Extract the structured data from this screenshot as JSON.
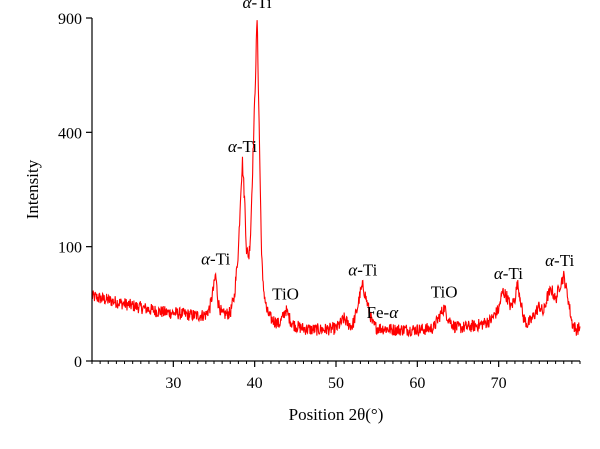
{
  "chart_data": {
    "type": "line",
    "xlabel": "Position 2θ(°)",
    "ylabel": "Intensity",
    "xlim": [
      20,
      80
    ],
    "ylim": [
      0,
      930
    ],
    "x_ticks": [
      30,
      40,
      50,
      60,
      70
    ],
    "x_tick_labels": [
      "30",
      "40",
      "50",
      "60",
      "70"
    ],
    "y_ticks": [
      0,
      100,
      400,
      900
    ],
    "y_tick_labels": [
      "0",
      "100",
      "400",
      "900"
    ],
    "y_tick_positions_data": [
      0,
      310,
      620,
      930
    ],
    "x_minor_step": 1,
    "line_color": "#ff0000",
    "background": "baseline noise",
    "series": [
      {
        "x": [
          20,
          21,
          22,
          23,
          24,
          25,
          26,
          27,
          28,
          29,
          30,
          31,
          32,
          33,
          34,
          34.5,
          35,
          35.2,
          35.5,
          36,
          37,
          37.5,
          38,
          38.3,
          38.5,
          38.8,
          39,
          39.3,
          39.5,
          40,
          40.3,
          40.5,
          40.8,
          41,
          41.5,
          42,
          43,
          43.5,
          43.8,
          44.5,
          45,
          46,
          47,
          48,
          49,
          50,
          50.5,
          51,
          51.5,
          52,
          52.5,
          53,
          53.3,
          53.8,
          54.5,
          55,
          56,
          57,
          58,
          59,
          60,
          61,
          62,
          62.7,
          63.3,
          63.8,
          64.5,
          65,
          66,
          67,
          68,
          69,
          70,
          70.5,
          71,
          71.5,
          72,
          72.3,
          72.6,
          73,
          73.5,
          74,
          75,
          75.5,
          76,
          76.5,
          77,
          77.5,
          78,
          78.5,
          79,
          79.5,
          80
        ],
        "y": [
          175,
          170,
          165,
          160,
          155,
          150,
          145,
          140,
          135,
          132,
          130,
          128,
          125,
          123,
          125,
          145,
          205,
          235,
          160,
          125,
          130,
          175,
          300,
          470,
          540,
          420,
          300,
          285,
          350,
          700,
          930,
          700,
          340,
          210,
          135,
          115,
          100,
          120,
          140,
          105,
          95,
          88,
          85,
          85,
          86,
          88,
          100,
          115,
          100,
          95,
          130,
          185,
          205,
          160,
          100,
          90,
          88,
          85,
          85,
          85,
          85,
          86,
          90,
          120,
          145,
          115,
          95,
          90,
          92,
          95,
          100,
          110,
          140,
          190,
          175,
          145,
          170,
          210,
          180,
          120,
          100,
          110,
          150,
          130,
          175,
          195,
          165,
          205,
          230,
          175,
          105,
          85,
          90
        ]
      }
    ],
    "annotations": [
      {
        "text": "α-Ti",
        "x": 35.2,
        "y": 235
      },
      {
        "text": "α-Ti",
        "x": 38.5,
        "y": 540
      },
      {
        "text": "α-Ti",
        "x": 40.3,
        "y": 930
      },
      {
        "text": "TiO",
        "x": 43.8,
        "y": 140
      },
      {
        "text": "α-Ti",
        "x": 53.3,
        "y": 205
      },
      {
        "text": "Fe-α",
        "x": 55.7,
        "y": 90
      },
      {
        "text": "TiO",
        "x": 63.3,
        "y": 145
      },
      {
        "text": "α-Ti",
        "x": 71.2,
        "y": 195
      },
      {
        "text": "α-Ti",
        "x": 77.5,
        "y": 230
      }
    ]
  }
}
